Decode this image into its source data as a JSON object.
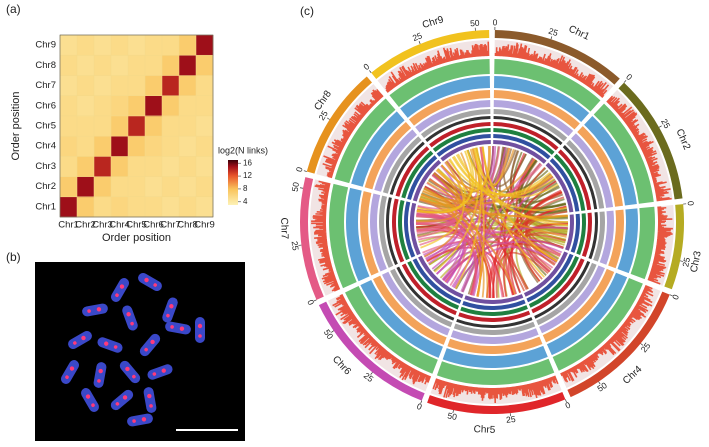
{
  "chart_data": [
    {
      "type": "heatmap",
      "panel_label": "(a)",
      "xlabel": "Order position",
      "ylabel": "Order position",
      "categories": [
        "Chr1",
        "Chr2",
        "Chr3",
        "Chr4",
        "Chr5",
        "Chr6",
        "Chr7",
        "Chr8",
        "Chr9"
      ],
      "values": [
        [
          15,
          7,
          5.5,
          6,
          5.5,
          5.5,
          5,
          5.5,
          5
        ],
        [
          7,
          15,
          7,
          5.5,
          5.5,
          5,
          5.5,
          5,
          5.5
        ],
        [
          5.5,
          7,
          14,
          7,
          5.5,
          5.5,
          5,
          5.5,
          5
        ],
        [
          6,
          5.5,
          7,
          15,
          7,
          6,
          5.5,
          5,
          5.5
        ],
        [
          5.5,
          5.5,
          5.5,
          7,
          14,
          7,
          5.5,
          5.5,
          5
        ],
        [
          5.5,
          5,
          5.5,
          6,
          7,
          15,
          7,
          5.5,
          5.5
        ],
        [
          5,
          5.5,
          5,
          5.5,
          5.5,
          7,
          14,
          7,
          5.5
        ],
        [
          5.5,
          5,
          5.5,
          5,
          5.5,
          5.5,
          7,
          15,
          7
        ],
        [
          5,
          5.5,
          5,
          5.5,
          5,
          5.5,
          5.5,
          7,
          15
        ]
      ],
      "colorbar_title": "log2(N links)",
      "clim": [
        3,
        17
      ],
      "cticks": [
        4,
        8,
        12,
        16
      ]
    },
    {
      "type": "circos",
      "panel_label": "(c)",
      "chromosomes": [
        {
          "name": "Chr1",
          "length": 60,
          "color": "#8b5a2b",
          "ticks": [
            0,
            25
          ]
        },
        {
          "name": "Chr2",
          "length": 58,
          "color": "#6b6b1e",
          "ticks": [
            0,
            25
          ]
        },
        {
          "name": "Chr3",
          "length": 38,
          "color": "#b5ab22",
          "ticks": [
            0,
            25
          ]
        },
        {
          "name": "Chr4",
          "length": 64,
          "color": "#d2452a",
          "ticks": [
            0,
            25,
            50
          ]
        },
        {
          "name": "Chr5",
          "length": 62,
          "color": "#e0262a",
          "ticks": [
            0,
            25,
            50
          ]
        },
        {
          "name": "Chr6",
          "length": 63,
          "color": "#c44bb3",
          "ticks": [
            0,
            25,
            50
          ]
        },
        {
          "name": "Chr7",
          "length": 55,
          "color": "#e45a86",
          "ticks": [
            0,
            25,
            50
          ]
        },
        {
          "name": "Chr8",
          "length": 50,
          "color": "#e6921e",
          "ticks": [
            0,
            25
          ]
        },
        {
          "name": "Chr9",
          "length": 56,
          "color": "#f1c21e",
          "ticks": [
            0,
            25,
            50
          ]
        }
      ]
    }
  ],
  "image_panel": {
    "label": "(b)"
  }
}
